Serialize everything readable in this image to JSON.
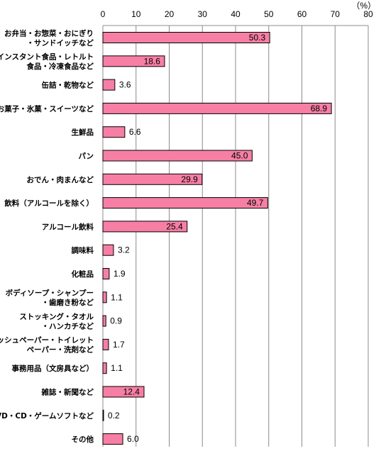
{
  "chart_data": {
    "type": "bar",
    "orientation": "horizontal",
    "unit": "（%）",
    "xlim": [
      0,
      80
    ],
    "ticks": [
      0,
      10,
      20,
      30,
      40,
      50,
      60,
      70,
      80
    ],
    "grid": true,
    "bar_color": "#f77fa5",
    "bar_border_color": "#000000",
    "categories": [
      [
        "お弁当・お惣菜・おにぎり",
        "・サンドイッチなど"
      ],
      [
        "インスタント食品・レトルト",
        "食品・冷凍食品など"
      ],
      [
        "缶詰・乾物など"
      ],
      [
        "お菓子・氷菓・スイーツなど"
      ],
      [
        "生鮮品"
      ],
      [
        "パン"
      ],
      [
        "おでん・肉まんなど"
      ],
      [
        "飲料（アルコールを除く）"
      ],
      [
        "アルコール飲料"
      ],
      [
        "調味料"
      ],
      [
        "化粧品"
      ],
      [
        "ボディソープ・シャンプー",
        "・歯磨き粉など"
      ],
      [
        "ストッキング・タオル",
        "・ハンカチなど"
      ],
      [
        "ティッシュペーパー・トイレット",
        "ペーパー・洗剤など"
      ],
      [
        "事務用品（文房具など）"
      ],
      [
        "雑誌・新聞など"
      ],
      [
        "DVD・CD・ゲームソフトなど"
      ],
      [
        "その他"
      ]
    ],
    "values": [
      50.3,
      18.6,
      3.6,
      68.9,
      6.6,
      45.0,
      29.9,
      49.7,
      25.4,
      3.2,
      1.9,
      1.1,
      0.9,
      1.7,
      1.1,
      12.4,
      0.2,
      6.0
    ],
    "data_labels": [
      "50.3",
      "18.6",
      "3.6",
      "68.9",
      "6.6",
      "45.0",
      "29.9",
      "49.7",
      "25.4",
      "3.2",
      "1.9",
      "1.1",
      "0.9",
      "1.7",
      "1.1",
      "12.4",
      "0.2",
      "6.0"
    ]
  }
}
